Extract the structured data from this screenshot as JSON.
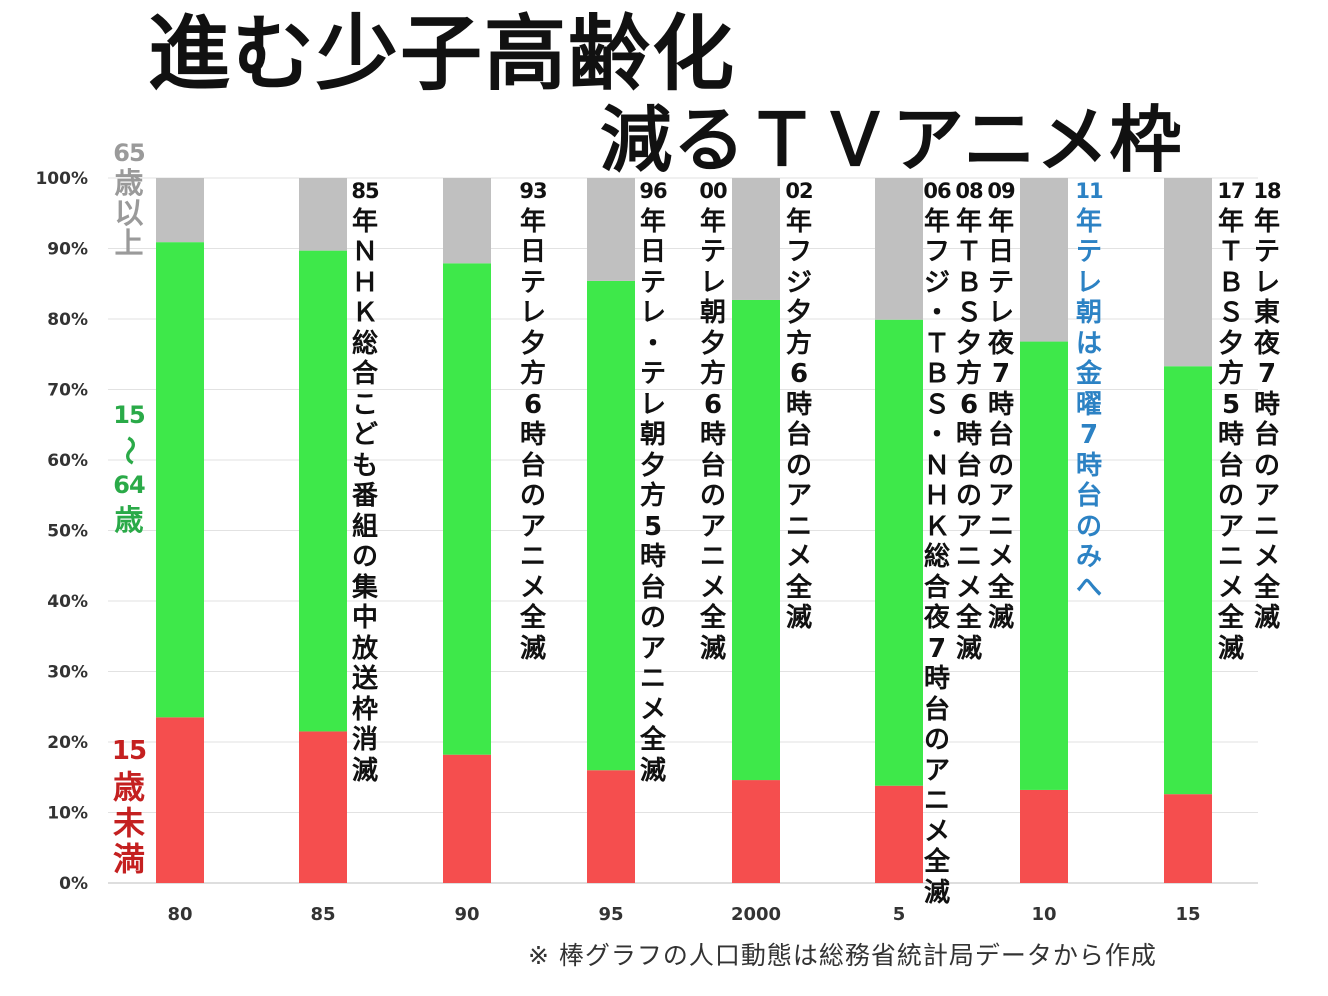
{
  "title": {
    "line1": "進む少子高齢化",
    "line2": "減るＴＶアニメ枠"
  },
  "legend": {
    "elderly": "65歳以上",
    "working": "15〜64歳",
    "youth": "15歳未満"
  },
  "colors": {
    "elderly": "#c0c0c0",
    "working": "#3ee84a",
    "youth": "#f54e4e",
    "elderly_text": "#9a9a9a",
    "working_text": "#2aaa48",
    "youth_text": "#c42020",
    "highlight_text": "#2c82c4",
    "annotation_text": "#111111"
  },
  "chart_data": {
    "type": "bar",
    "stacked": true,
    "title": "進む少子高齢化 減るＴＶアニメ枠",
    "categories": [
      "80",
      "85",
      "90",
      "95",
      "2000",
      "5",
      "10",
      "15"
    ],
    "series": [
      {
        "name": "15歳未満",
        "values": [
          23.5,
          21.5,
          18.2,
          16.0,
          14.6,
          13.8,
          13.2,
          12.6
        ]
      },
      {
        "name": "15〜64歳",
        "values": [
          67.4,
          68.2,
          69.7,
          69.4,
          68.1,
          66.1,
          63.6,
          60.7
        ]
      },
      {
        "name": "65歳以上",
        "values": [
          9.1,
          10.3,
          12.1,
          14.6,
          17.3,
          20.1,
          23.2,
          26.7
        ]
      }
    ],
    "y_ticks": [
      "0%",
      "10%",
      "20%",
      "30%",
      "40%",
      "50%",
      "60%",
      "70%",
      "80%",
      "90%",
      "100%"
    ],
    "ylim": [
      0,
      100
    ],
    "xlabel": "",
    "ylabel": "",
    "grid": true,
    "annotations": [
      {
        "year": "85",
        "text": "85年ＮＨＫ総合こども番組の集中放送枠消滅"
      },
      {
        "year": "93",
        "text": "93年日テレ夕方6時台のアニメ全滅"
      },
      {
        "year": "96",
        "text": "96年日テレ・テレ朝夕方5時台のアニメ全滅"
      },
      {
        "year": "00",
        "text": "00年テレ朝夕方6時台のアニメ全滅"
      },
      {
        "year": "02",
        "text": "02年フジ夕方6時台のアニメ全滅"
      },
      {
        "year": "06",
        "text": "06年フジ・ＴＢＳ・ＮＨＫ総合夜7時台のアニメ全滅"
      },
      {
        "year": "08",
        "text": "08年ＴＢＳ夕方6時台のアニメ全滅"
      },
      {
        "year": "09",
        "text": "09年日テレ夜7時台のアニメ全滅"
      },
      {
        "year": "11",
        "text": "11年テレ朝は金曜7時台のみへ",
        "highlight": true
      },
      {
        "year": "17",
        "text": "17年ＴＢＳ夕方5時台のアニメ全滅"
      },
      {
        "year": "18",
        "text": "18年テレ東夜7時台のアニメ全滅"
      }
    ]
  },
  "footnote": "※ 棒グラフの人口動態は総務省統計局データから作成"
}
